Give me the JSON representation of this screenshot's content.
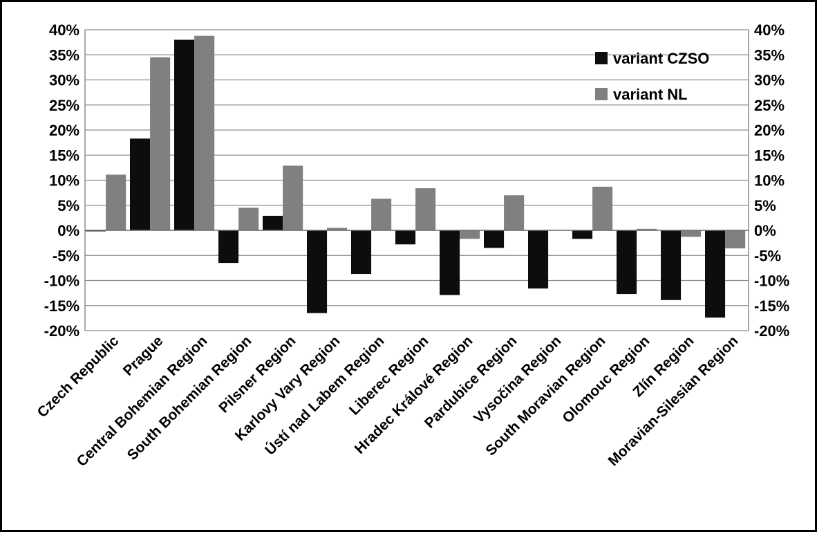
{
  "chart_data": {
    "type": "bar",
    "title": "",
    "xlabel": "",
    "ylabel": "",
    "ylim": [
      -20,
      40
    ],
    "y_ticks": [
      "40%",
      "35%",
      "30%",
      "25%",
      "20%",
      "15%",
      "10%",
      "5%",
      "0%",
      "-5%",
      "-10%",
      "-15%",
      "-20%"
    ],
    "y_tick_values": [
      40,
      35,
      30,
      25,
      20,
      15,
      10,
      5,
      0,
      -5,
      -10,
      -15,
      -20
    ],
    "unit": "%",
    "grid": true,
    "dual_y_axis": true,
    "legend_position": "top-right",
    "categories": [
      "Czech Republic",
      "Prague",
      "Central Bohemian Region",
      "South Bohemian Region",
      "Pilsner Region",
      "Karlovy Vary Region",
      "Ústí nad Labem Region",
      "Liberec Region",
      "Hradec Králové Region",
      "Pardubice Region",
      "Vysočina Region",
      "South Moravian Region",
      "Olomouc Region",
      "Zlín Region",
      "Moravian-Silesian Region"
    ],
    "series": [
      {
        "name": "variant CZSO",
        "color": "#0d0d0d",
        "values": [
          -0.2,
          18.3,
          38.0,
          -6.5,
          2.9,
          -16.5,
          -8.7,
          -2.8,
          -12.9,
          -3.5,
          -11.6,
          -1.7,
          -12.7,
          -13.9,
          -17.4
        ]
      },
      {
        "name": "variant NL",
        "color": "#808080",
        "values": [
          11.1,
          34.5,
          38.8,
          4.5,
          12.9,
          0.5,
          6.3,
          8.4,
          -1.7,
          7.0,
          0.0,
          8.7,
          0.3,
          -1.3,
          -3.6
        ]
      }
    ]
  }
}
